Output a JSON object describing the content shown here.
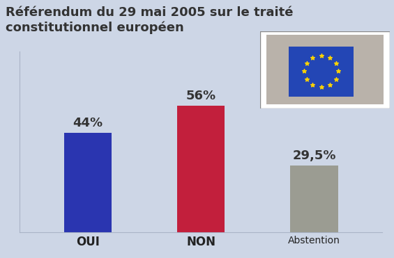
{
  "chart_data": {
    "type": "bar",
    "title": "Référendum du 29 mai 2005 sur le traité constitutionnel européen",
    "categories": [
      "OUI",
      "NON",
      "Abstention"
    ],
    "values": [
      44,
      56,
      29.5
    ],
    "value_labels": [
      "44%",
      "56%",
      "29,5%"
    ],
    "colors": [
      "#2a35b0",
      "#c21f3c",
      "#9b9c92"
    ],
    "ylim": [
      0,
      80
    ],
    "yticks": [],
    "data_labels": true,
    "tick_labels": "x",
    "grid": false
  }
}
